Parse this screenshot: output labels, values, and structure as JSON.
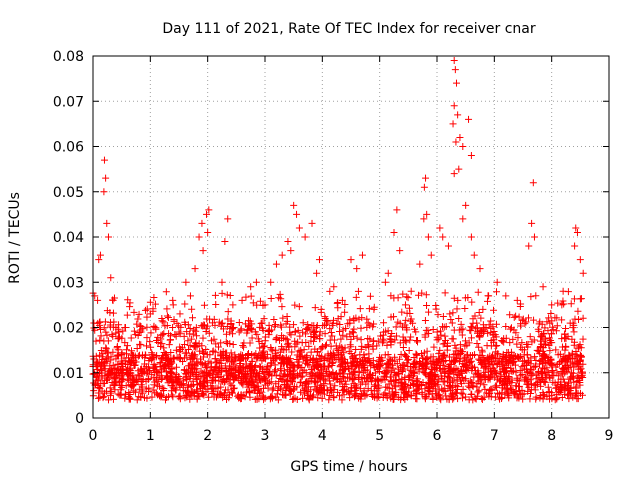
{
  "chart_data": {
    "type": "scatter",
    "title": "Day 111 of 2021, Rate Of TEC Index for receiver cnar",
    "xlabel": "GPS time / hours",
    "ylabel": "ROTI / TECUs",
    "xlim": [
      0,
      9
    ],
    "ylim": [
      0,
      0.08
    ],
    "x_ticks": [
      0,
      1,
      2,
      3,
      4,
      5,
      6,
      7,
      8,
      9
    ],
    "x_tick_labels": [
      "0",
      "1",
      "2",
      "3",
      "4",
      "5",
      "6",
      "7",
      "8",
      "9"
    ],
    "y_ticks": [
      0,
      0.01,
      0.02,
      0.03,
      0.04,
      0.05,
      0.06,
      0.07,
      0.08
    ],
    "y_tick_labels": [
      "0",
      "0.01",
      "0.02",
      "0.03",
      "0.04",
      "0.05",
      "0.06",
      "0.07",
      "0.08"
    ],
    "grid": true,
    "marker": "plus",
    "color": "#ff0000",
    "x_data_extent": [
      0,
      8.55
    ],
    "point_count_estimate": 3000,
    "features": [
      {
        "x_range": [
          0.15,
          0.3
        ],
        "y_range": [
          0.035,
          0.057
        ],
        "note": "early spike near 0.2 h"
      },
      {
        "x_range": [
          1.75,
          2.05
        ],
        "y_range": [
          0.03,
          0.046
        ],
        "note": "rise near 2 h"
      },
      {
        "x_range": [
          3.4,
          3.65
        ],
        "y_range": [
          0.03,
          0.047
        ],
        "note": "cluster near 3.5 h"
      },
      {
        "x_range": [
          5.75,
          5.85
        ],
        "y_range": [
          0.044,
          0.053
        ],
        "note": "peak near 5.8 h"
      },
      {
        "x_range": [
          6.25,
          6.6
        ],
        "y_range": [
          0.045,
          0.079
        ],
        "note": "maximum near 6.35 h"
      },
      {
        "x_range": [
          7.65,
          7.7
        ],
        "y_range": [
          0.04,
          0.052
        ],
        "note": "isolated peak near 7.7 h"
      },
      {
        "x_range": [
          8.4,
          8.5
        ],
        "y_range": [
          0.035,
          0.042
        ],
        "note": "late rise near 8.45 h"
      }
    ],
    "points": [
      [
        0.2,
        0.057
      ],
      [
        0.22,
        0.053
      ],
      [
        0.19,
        0.05
      ],
      [
        0.24,
        0.043
      ],
      [
        0.13,
        0.036
      ],
      [
        0.27,
        0.04
      ],
      [
        0.03,
        0.027
      ],
      [
        0.08,
        0.026
      ],
      [
        0.1,
        0.035
      ],
      [
        0.35,
        0.026
      ],
      [
        0.4,
        0.02
      ],
      [
        0.31,
        0.031
      ],
      [
        1.78,
        0.033
      ],
      [
        1.85,
        0.04
      ],
      [
        1.9,
        0.043
      ],
      [
        1.98,
        0.045
      ],
      [
        2.02,
        0.046
      ],
      [
        2.0,
        0.041
      ],
      [
        1.92,
        0.037
      ],
      [
        2.35,
        0.044
      ],
      [
        2.3,
        0.039
      ],
      [
        2.25,
        0.03
      ],
      [
        1.62,
        0.03
      ],
      [
        1.7,
        0.027
      ],
      [
        3.5,
        0.047
      ],
      [
        3.55,
        0.045
      ],
      [
        3.6,
        0.042
      ],
      [
        3.4,
        0.039
      ],
      [
        3.45,
        0.037
      ],
      [
        3.7,
        0.04
      ],
      [
        3.82,
        0.043
      ],
      [
        3.95,
        0.035
      ],
      [
        3.9,
        0.032
      ],
      [
        3.2,
        0.034
      ],
      [
        3.1,
        0.03
      ],
      [
        3.3,
        0.036
      ],
      [
        5.3,
        0.046
      ],
      [
        5.25,
        0.041
      ],
      [
        5.35,
        0.037
      ],
      [
        5.1,
        0.03
      ],
      [
        5.15,
        0.032
      ],
      [
        5.8,
        0.053
      ],
      [
        5.78,
        0.051
      ],
      [
        5.82,
        0.045
      ],
      [
        5.77,
        0.044
      ],
      [
        5.85,
        0.04
      ],
      [
        5.7,
        0.034
      ],
      [
        5.9,
        0.036
      ],
      [
        6.3,
        0.079
      ],
      [
        6.32,
        0.077
      ],
      [
        6.34,
        0.074
      ],
      [
        6.3,
        0.069
      ],
      [
        6.36,
        0.067
      ],
      [
        6.28,
        0.065
      ],
      [
        6.33,
        0.061
      ],
      [
        6.4,
        0.062
      ],
      [
        6.45,
        0.06
      ],
      [
        6.55,
        0.066
      ],
      [
        6.6,
        0.058
      ],
      [
        6.38,
        0.055
      ],
      [
        6.3,
        0.054
      ],
      [
        6.5,
        0.047
      ],
      [
        6.45,
        0.044
      ],
      [
        6.6,
        0.04
      ],
      [
        6.1,
        0.04
      ],
      [
        6.05,
        0.042
      ],
      [
        6.2,
        0.038
      ],
      [
        6.65,
        0.036
      ],
      [
        6.75,
        0.033
      ],
      [
        7.68,
        0.052
      ],
      [
        7.65,
        0.043
      ],
      [
        7.7,
        0.04
      ],
      [
        7.6,
        0.038
      ],
      [
        8.42,
        0.042
      ],
      [
        8.45,
        0.041
      ],
      [
        8.4,
        0.038
      ],
      [
        8.5,
        0.035
      ],
      [
        8.55,
        0.032
      ],
      [
        4.6,
        0.033
      ],
      [
        4.7,
        0.036
      ],
      [
        4.5,
        0.035
      ],
      [
        4.2,
        0.029
      ],
      [
        2.85,
        0.03
      ],
      [
        2.75,
        0.029
      ],
      [
        1.4,
        0.025
      ],
      [
        1.2,
        0.022
      ],
      [
        1.0,
        0.023
      ],
      [
        0.6,
        0.016
      ],
      [
        0.5,
        0.012
      ],
      [
        0.45,
        0.019
      ],
      [
        7.05,
        0.03
      ],
      [
        7.2,
        0.027
      ],
      [
        7.4,
        0.026
      ],
      [
        7.85,
        0.029
      ],
      [
        8.0,
        0.025
      ],
      [
        8.2,
        0.028
      ],
      [
        6.9,
        0.027
      ],
      [
        6.8,
        0.024
      ],
      [
        5.55,
        0.028
      ],
      [
        5.45,
        0.025
      ],
      [
        4.9,
        0.024
      ],
      [
        4.8,
        0.021
      ],
      [
        4.35,
        0.026
      ],
      [
        4.05,
        0.022
      ],
      [
        2.6,
        0.026
      ],
      [
        2.55,
        0.019
      ],
      [
        2.45,
        0.02
      ],
      [
        3.0,
        0.025
      ],
      [
        2.95,
        0.021
      ],
      [
        1.5,
        0.019
      ]
    ]
  }
}
